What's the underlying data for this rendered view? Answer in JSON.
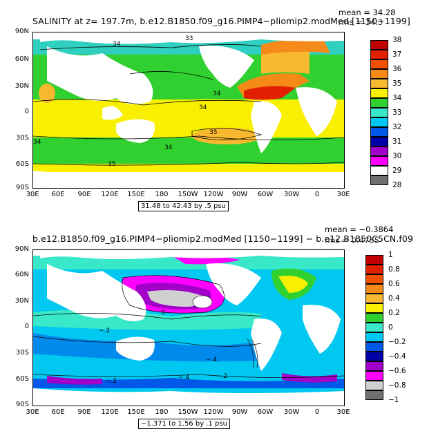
{
  "panel1": {
    "title": "SALINITY at z= 197.7m, b.e12.B1850.f09_g16.PIMP4−pliomip2.modMed [1150−1199]",
    "mean": "mean = 34.28",
    "rms": "rms = 34.3",
    "range_box": "31.48 to 42.43 by .5 psu",
    "lat_ticks": [
      "90N",
      "60N",
      "30N",
      "0",
      "30S",
      "60S",
      "90S"
    ],
    "lon_ticks": [
      "30E",
      "60E",
      "90E",
      "120E",
      "150E",
      "180",
      "150W",
      "120W",
      "90W",
      "60W",
      "30W",
      "0",
      "30E"
    ],
    "contour_labels": [
      "33",
      "35",
      "34",
      "34",
      "35",
      "34",
      "34",
      "34"
    ],
    "colorbar": {
      "labels": [
        "38",
        "37",
        "36",
        "35",
        "34",
        "33",
        "32",
        "31",
        "30",
        "29",
        "28"
      ],
      "colors": [
        "#c00000",
        "#e02000",
        "#f05000",
        "#f58a18",
        "#f8b830",
        "#f8f000",
        "#30d030",
        "#38e8c8",
        "#00c8f0",
        "#0058e8",
        "#0000a8",
        "#a000c8",
        "#ff00ff",
        "#ffffff",
        "#707070"
      ]
    }
  },
  "panel2": {
    "title": "b.e12.B1850.f09_g16.PIMP4−pliomip2.modMed [1150−1199] − b.e12.B1850C5CN.f09",
    "mean": "mean = −0.3864",
    "rms": "rms = 0.4755",
    "range_box": "−1.371 to 1.56 by .1 psu",
    "lat_ticks": [
      "90N",
      "60N",
      "30N",
      "0",
      "30S",
      "60S",
      "90S"
    ],
    "lon_ticks": [
      "30E",
      "60E",
      "90E",
      "120E",
      "150E",
      "180",
      "150W",
      "120W",
      "90W",
      "60W",
      "30W",
      "0",
      "30E"
    ],
    "contour_labels": [
      "0",
      "−.2",
      "−.4",
      "−.2",
      "−.4",
      "−.2"
    ],
    "colorbar": {
      "labels": [
        "1",
        "0.8",
        "0.6",
        "0.4",
        "0.2",
        "0",
        "−0.2",
        "−0.4",
        "−0.6",
        "−0.8",
        "−1"
      ],
      "colors": [
        "#c00000",
        "#e02000",
        "#f05000",
        "#f58a18",
        "#f8b830",
        "#f8f000",
        "#30d030",
        "#38e8c8",
        "#00c8f0",
        "#0058e8",
        "#0000a8",
        "#a000c8",
        "#ff00ff",
        "#d0d0d0",
        "#707070"
      ]
    }
  }
}
